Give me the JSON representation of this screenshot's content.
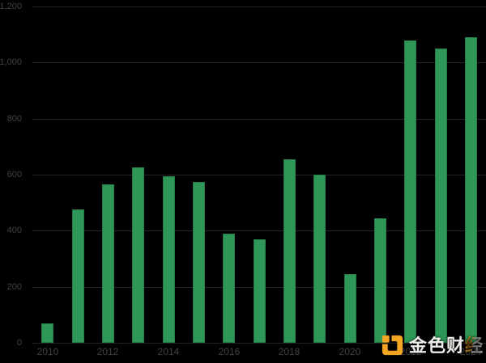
{
  "chart_data": {
    "type": "bar",
    "title": "",
    "xlabel": "",
    "ylabel": "",
    "categories": [
      "2010",
      "2011",
      "2012",
      "2013",
      "2014",
      "2015",
      "2016",
      "2017",
      "2018",
      "2019",
      "2020",
      "2021",
      "2022",
      "2023",
      "2024"
    ],
    "values": [
      70,
      475,
      565,
      625,
      595,
      575,
      390,
      370,
      655,
      600,
      245,
      445,
      1080,
      1050,
      1090
    ],
    "ylim": [
      0,
      1200
    ],
    "yticks": [
      {
        "value": 0,
        "label": "0"
      },
      {
        "value": 200,
        "label": "200"
      },
      {
        "value": 400,
        "label": "400"
      },
      {
        "value": 600,
        "label": "600"
      },
      {
        "value": 800,
        "label": "800"
      },
      {
        "value": 1000,
        "label": "1,000"
      },
      {
        "value": 1200,
        "label": "1,200"
      }
    ],
    "xticks": [
      "2010",
      "2012",
      "2014",
      "2016",
      "2018",
      "2020",
      "2022",
      "2024"
    ],
    "grid": true,
    "legend_position": "none",
    "bar_color": "#2e9657",
    "background_color": "#000000",
    "gridline_color": "#242424",
    "tick_label_color": "#404040"
  },
  "watermark": {
    "text": "金色财经",
    "text_prefix": "金色财",
    "text_suffix": "经",
    "logo_color": "#f4a623",
    "text_color": "#edece8"
  }
}
